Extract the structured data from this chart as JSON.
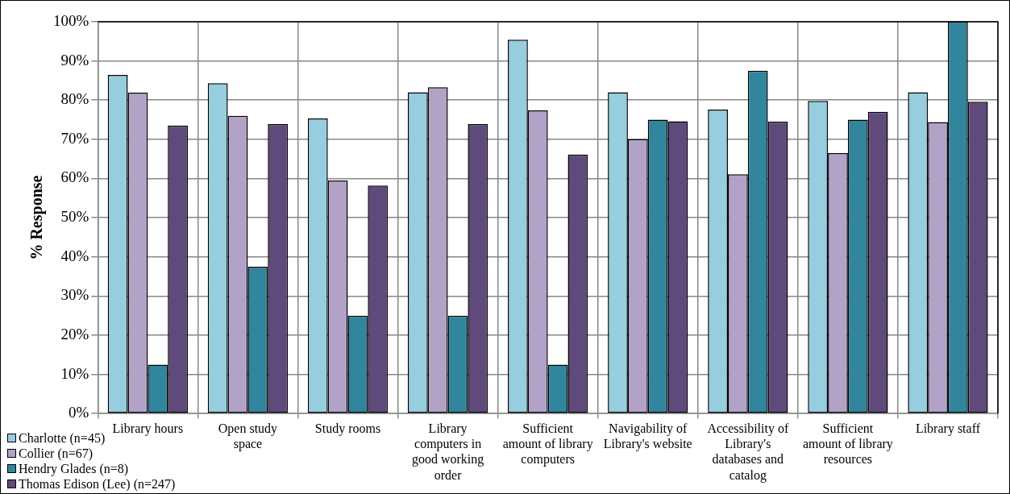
{
  "chart_data": {
    "type": "bar",
    "ylabel": "% Response",
    "categories": [
      "Library hours",
      "Open study space",
      "Study rooms",
      "Library computers in good working order",
      "Sufficient amount of library computers",
      "Navigability of Library's website",
      "Accessibility of Library's databases and catalog",
      "Sufficient amount of library resources",
      "Library staff"
    ],
    "series": [
      {
        "name": "Charlotte (n=45)",
        "color": "#96cddf",
        "values": [
          86.4,
          84.3,
          75.3,
          82.0,
          95.4,
          82.0,
          77.6,
          79.8,
          82.0
        ]
      },
      {
        "name": "Collier (n=67)",
        "color": "#b3a2c8",
        "values": [
          81.9,
          76.0,
          59.5,
          83.3,
          77.4,
          70.0,
          61.1,
          66.5,
          74.4
        ]
      },
      {
        "name": "Hendry Glades (n=8)",
        "color": "#31859c",
        "values": [
          12.5,
          37.5,
          25.0,
          25.0,
          12.5,
          75.0,
          87.5,
          75.0,
          100
        ]
      },
      {
        "name": "Thomas Edison (Lee) (n=247)",
        "color": "#604a7b",
        "values": [
          73.5,
          73.9,
          58.2,
          73.9,
          66.1,
          74.6,
          74.5,
          77.0,
          79.6
        ]
      }
    ],
    "ylim": [
      0,
      100
    ],
    "yticks": [
      {
        "value": 0,
        "label": "0%"
      },
      {
        "value": 10,
        "label": "10%"
      },
      {
        "value": 20,
        "label": "20%"
      },
      {
        "value": 30,
        "label": "30%"
      },
      {
        "value": 40,
        "label": "40%"
      },
      {
        "value": 50,
        "label": "50%"
      },
      {
        "value": 60,
        "label": "60%"
      },
      {
        "value": 70,
        "label": "70%"
      },
      {
        "value": 80,
        "label": "80%"
      },
      {
        "value": 90,
        "label": "90%"
      },
      {
        "value": 100,
        "label": "100%"
      }
    ],
    "grid": true,
    "legend": "bottom left"
  }
}
